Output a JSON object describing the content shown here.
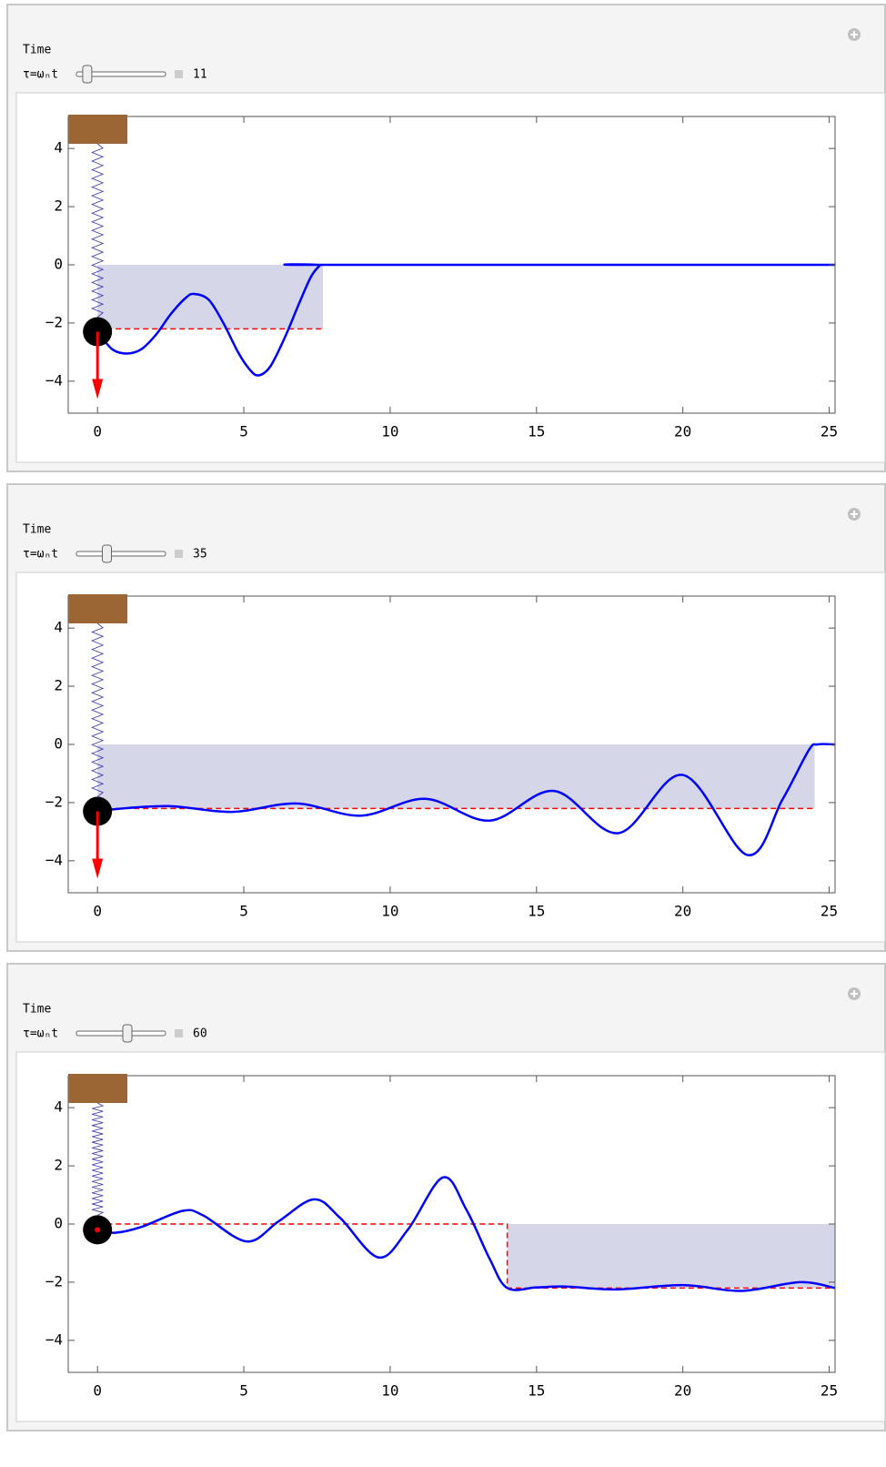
{
  "panels": [
    {
      "controls": {
        "label": "Time",
        "slider_label": "τ=ωₙt",
        "value": 11
      },
      "chart_data": {
        "type": "line",
        "xlim": [
          -1,
          25.2
        ],
        "ylim": [
          -5.1,
          5.1
        ],
        "xticks": [
          0,
          5,
          10,
          15,
          20,
          25
        ],
        "yticks": [
          {
            "value": -4,
            "label": "−4"
          },
          {
            "value": -2,
            "label": "−2"
          },
          0,
          2,
          4
        ],
        "series": [
          {
            "color": "#0000ff",
            "x": [
              0,
              0.5,
              1,
              1.5,
              2,
              2.5,
              3,
              3.3,
              3.8,
              4.3,
              4.8,
              5.2,
              5.5,
              5.9,
              6.4,
              6.9,
              7.3,
              7.6,
              7.7,
              25.2
            ],
            "values": [
              -2.3,
              -2.9,
              -3.05,
              -2.9,
              -2.4,
              -1.7,
              -1.15,
              -1.0,
              -1.2,
              -2.0,
              -3.0,
              -3.6,
              -3.8,
              -3.5,
              -2.5,
              -1.3,
              -0.4,
              -0.02,
              0,
              0
            ]
          },
          {
            "color": "#ff0000",
            "dashed": true,
            "x": [
              0,
              7.7
            ],
            "values": [
              -2.2,
              -2.2
            ]
          }
        ],
        "pulse": {
          "x": [
            0,
            7.7
          ],
          "level": -2.2,
          "color": "#d5d7e9"
        },
        "mass": {
          "position": -2.3,
          "force": true
        }
      }
    },
    {
      "controls": {
        "label": "Time",
        "slider_label": "τ=ωₙt",
        "value": 35
      },
      "chart_data": {
        "type": "line",
        "xlim": [
          -1,
          25.2
        ],
        "ylim": [
          -5.1,
          5.1
        ],
        "xticks": [
          0,
          5,
          10,
          15,
          20,
          25
        ],
        "yticks": [
          {
            "value": -4,
            "label": "−4"
          },
          {
            "value": -2,
            "label": "−2"
          },
          0,
          2,
          4
        ],
        "series": [
          {
            "color": "#0000ff",
            "x": [
              0,
              0.3,
              2.4,
              4.6,
              6.8,
              9,
              11.2,
              13.4,
              15.6,
              17.8,
              20,
              22.2,
              23.4,
              24.3,
              24.6,
              25.2
            ],
            "values": [
              -2.3,
              -2.25,
              -2.12,
              -2.32,
              -2.03,
              -2.45,
              -1.87,
              -2.62,
              -1.6,
              -3.05,
              -1.05,
              -3.8,
              -1.9,
              -0.2,
              0,
              0
            ]
          },
          {
            "color": "#ff0000",
            "dashed": true,
            "x": [
              0,
              24.5
            ],
            "values": [
              -2.2,
              -2.2
            ]
          }
        ],
        "pulse": {
          "x": [
            0,
            24.5
          ],
          "level": -2.2,
          "color": "#d5d7e9"
        },
        "mass": {
          "position": -2.3,
          "force": true
        }
      }
    },
    {
      "controls": {
        "label": "Time",
        "slider_label": "τ=ωₙt",
        "value": 60
      },
      "chart_data": {
        "type": "line",
        "xlim": [
          -1,
          25.2
        ],
        "ylim": [
          -5.1,
          5.1
        ],
        "xticks": [
          0,
          5,
          10,
          15,
          20,
          25
        ],
        "yticks": [
          {
            "value": -4,
            "label": "−4"
          },
          {
            "value": -2,
            "label": "−2"
          },
          0,
          2,
          4
        ],
        "series": [
          {
            "color": "#0000ff",
            "x": [
              0,
              0.6,
              1.5,
              2.9,
              3.6,
              5.1,
              6.2,
              7.4,
              8.3,
              9.6,
              10.6,
              11.8,
              12.6,
              13.4,
              14,
              15,
              16,
              17.7,
              20,
              22,
              24,
              25.2
            ],
            "values": [
              -0.2,
              -0.3,
              -0.1,
              0.45,
              0.3,
              -0.6,
              0.1,
              0.85,
              0.2,
              -1.15,
              -0.2,
              1.6,
              0.5,
              -1.2,
              -2.2,
              -2.18,
              -2.15,
              -2.25,
              -2.1,
              -2.3,
              -2.0,
              -2.2
            ]
          },
          {
            "color": "#ff0000",
            "dashed": true,
            "x": [
              0,
              14,
              14,
              25.2
            ],
            "values": [
              0,
              0,
              -2.2,
              -2.2
            ]
          }
        ],
        "pulse": {
          "x": [
            14,
            25.2
          ],
          "level": -2.2,
          "color": "#d5d7e9"
        },
        "mass": {
          "position": -0.2,
          "force": false
        }
      }
    }
  ]
}
